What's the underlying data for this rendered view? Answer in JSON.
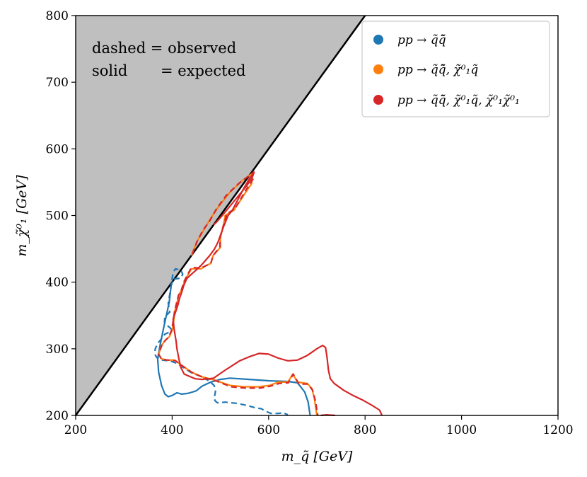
{
  "chart_data": {
    "type": "line",
    "xlabel": "m_q̃ [GeV]",
    "ylabel": "m_χ̃⁰₁ [GeV]",
    "xlim": [
      200,
      1200
    ],
    "ylim": [
      200,
      800
    ],
    "xticks": [
      "200",
      "400",
      "600",
      "800",
      "1000",
      "1200"
    ],
    "yticks": [
      "200",
      "300",
      "400",
      "500",
      "600",
      "700",
      "800"
    ],
    "xticks_values": [
      200,
      400,
      600,
      800,
      1000,
      1200
    ],
    "yticks_values": [
      200,
      300,
      400,
      500,
      600,
      700,
      800
    ],
    "annotation": {
      "line1": "dashed = observed",
      "line2_key": "solid",
      "line2_value": "= expected"
    },
    "excluded_region": {
      "description": "kinematically forbidden",
      "boundary": [
        [
          200,
          200
        ],
        [
          800,
          800
        ]
      ],
      "color": "#bfbfbf"
    },
    "legend": [
      {
        "label": "pp → q̃q̃̄",
        "color": "#1f77b4"
      },
      {
        "label": "pp → q̃q̃̄, χ̃⁰₁q̃",
        "color": "#ff7f0e"
      },
      {
        "label": "pp → q̃q̃̄, χ̃⁰₁q̃, χ̃⁰₁χ̃⁰₁",
        "color": "#d62728"
      }
    ],
    "series": [
      {
        "name": "blue expected",
        "color": "#1f77b4",
        "style": "solid",
        "points": [
          [
            401,
            401
          ],
          [
            398,
            395
          ],
          [
            394,
            370
          ],
          [
            388,
            350
          ],
          [
            382,
            330
          ],
          [
            375,
            305
          ],
          [
            370,
            285
          ],
          [
            372,
            265
          ],
          [
            378,
            245
          ],
          [
            385,
            232
          ],
          [
            392,
            228
          ],
          [
            400,
            230
          ],
          [
            410,
            234
          ],
          [
            420,
            232
          ],
          [
            432,
            233
          ],
          [
            442,
            235
          ],
          [
            450,
            237
          ],
          [
            462,
            244
          ],
          [
            480,
            250
          ],
          [
            500,
            254
          ],
          [
            520,
            256
          ],
          [
            560,
            254
          ],
          [
            600,
            252
          ],
          [
            640,
            251
          ],
          [
            660,
            249
          ],
          [
            675,
            235
          ],
          [
            682,
            220
          ],
          [
            686,
            200
          ]
        ]
      },
      {
        "name": "blue observed",
        "color": "#1f77b4",
        "style": "dashed",
        "points": [
          [
            404,
            404
          ],
          [
            407,
            405
          ],
          [
            418,
            406
          ],
          [
            422,
            412
          ],
          [
            418,
            418
          ],
          [
            407,
            420
          ],
          [
            402,
            415
          ],
          [
            398,
            395
          ],
          [
            392,
            368
          ],
          [
            395,
            355
          ],
          [
            385,
            348
          ],
          [
            384,
            340
          ],
          [
            390,
            335
          ],
          [
            398,
            330
          ],
          [
            394,
            325
          ],
          [
            385,
            322
          ],
          [
            378,
            315
          ],
          [
            370,
            308
          ],
          [
            365,
            300
          ],
          [
            364,
            292
          ],
          [
            368,
            287
          ],
          [
            378,
            283
          ],
          [
            395,
            282
          ],
          [
            410,
            278
          ],
          [
            425,
            271
          ],
          [
            440,
            264
          ],
          [
            462,
            258
          ],
          [
            478,
            251
          ],
          [
            487,
            245
          ],
          [
            490,
            238
          ],
          [
            489,
            232
          ],
          [
            487,
            227
          ],
          [
            489,
            222
          ],
          [
            494,
            219
          ],
          [
            510,
            220
          ],
          [
            535,
            218
          ],
          [
            555,
            215
          ],
          [
            570,
            212
          ],
          [
            585,
            210
          ],
          [
            595,
            206
          ],
          [
            605,
            203
          ],
          [
            620,
            203
          ],
          [
            630,
            204
          ],
          [
            640,
            201
          ]
        ]
      },
      {
        "name": "orange expected",
        "color": "#ff7f0e",
        "style": "solid",
        "points": [
          [
            440,
            440
          ],
          [
            452,
            462
          ],
          [
            467,
            480
          ],
          [
            480,
            496
          ],
          [
            495,
            512
          ],
          [
            520,
            535
          ],
          [
            545,
            552
          ],
          [
            566,
            563
          ],
          [
            565,
            548
          ],
          [
            550,
            532
          ],
          [
            528,
            508
          ],
          [
            510,
            500
          ],
          [
            505,
            480
          ],
          [
            500,
            468
          ],
          [
            500,
            452
          ],
          [
            485,
            440
          ],
          [
            480,
            428
          ],
          [
            471,
            425
          ],
          [
            460,
            420
          ],
          [
            440,
            420
          ],
          [
            432,
            410
          ],
          [
            425,
            400
          ],
          [
            421,
            390
          ],
          [
            413,
            380
          ],
          [
            410,
            368
          ],
          [
            405,
            355
          ],
          [
            404,
            345
          ],
          [
            400,
            328
          ],
          [
            394,
            318
          ],
          [
            385,
            312
          ],
          [
            378,
            305
          ],
          [
            372,
            292
          ],
          [
            378,
            285
          ],
          [
            390,
            283
          ],
          [
            405,
            283
          ],
          [
            420,
            275
          ],
          [
            440,
            265
          ],
          [
            462,
            258
          ],
          [
            488,
            253
          ],
          [
            520,
            245
          ],
          [
            550,
            243
          ],
          [
            580,
            243
          ],
          [
            602,
            245
          ],
          [
            620,
            250
          ],
          [
            640,
            250
          ],
          [
            650,
            262
          ],
          [
            660,
            250
          ],
          [
            680,
            248
          ],
          [
            690,
            240
          ],
          [
            695,
            225
          ],
          [
            700,
            200
          ]
        ]
      },
      {
        "name": "red observed",
        "color": "#d62728",
        "style": "dashed",
        "points": [
          [
            442,
            442
          ],
          [
            451,
            460
          ],
          [
            464,
            478
          ],
          [
            478,
            492
          ],
          [
            492,
            510
          ],
          [
            512,
            530
          ],
          [
            538,
            548
          ],
          [
            560,
            560
          ],
          [
            568,
            565
          ],
          [
            568,
            555
          ],
          [
            553,
            538
          ],
          [
            530,
            510
          ],
          [
            514,
            503
          ],
          [
            505,
            482
          ],
          [
            500,
            468
          ],
          [
            499,
            453
          ],
          [
            485,
            440
          ],
          [
            480,
            428
          ],
          [
            471,
            425
          ],
          [
            459,
            421
          ],
          [
            440,
            422
          ],
          [
            431,
            410
          ],
          [
            424,
            400
          ],
          [
            419,
            388
          ],
          [
            413,
            380
          ],
          [
            409,
            368
          ],
          [
            405,
            356
          ],
          [
            403,
            345
          ],
          [
            399,
            328
          ],
          [
            393,
            318
          ],
          [
            385,
            312
          ],
          [
            378,
            304
          ],
          [
            372,
            292
          ],
          [
            378,
            284
          ],
          [
            392,
            283
          ],
          [
            407,
            282
          ],
          [
            422,
            274
          ],
          [
            442,
            264
          ],
          [
            464,
            257
          ],
          [
            490,
            252
          ],
          [
            522,
            243
          ],
          [
            552,
            241
          ],
          [
            582,
            241
          ],
          [
            604,
            244
          ],
          [
            622,
            248
          ],
          [
            641,
            249
          ],
          [
            651,
            262
          ],
          [
            663,
            247
          ],
          [
            681,
            247
          ],
          [
            691,
            238
          ],
          [
            697,
            222
          ],
          [
            702,
            200
          ]
        ]
      },
      {
        "name": "red expected",
        "color": "#d62728",
        "style": "solid",
        "points": [
          [
            486,
            486
          ],
          [
            492,
            490
          ],
          [
            504,
            500
          ],
          [
            520,
            514
          ],
          [
            538,
            530
          ],
          [
            555,
            545
          ],
          [
            566,
            557
          ],
          [
            570,
            565
          ],
          [
            560,
            555
          ],
          [
            548,
            540
          ],
          [
            535,
            522
          ],
          [
            525,
            508
          ],
          [
            516,
            500
          ],
          [
            506,
            482
          ],
          [
            500,
            470
          ],
          [
            495,
            460
          ],
          [
            488,
            450
          ],
          [
            478,
            440
          ],
          [
            460,
            425
          ],
          [
            448,
            417
          ],
          [
            437,
            410
          ],
          [
            430,
            405
          ],
          [
            424,
            395
          ],
          [
            420,
            385
          ],
          [
            415,
            375
          ],
          [
            412,
            366
          ],
          [
            407,
            355
          ],
          [
            402,
            345
          ],
          [
            404,
            330
          ],
          [
            408,
            312
          ],
          [
            410,
            300
          ],
          [
            414,
            285
          ],
          [
            418,
            272
          ],
          [
            425,
            262
          ],
          [
            438,
            258
          ],
          [
            448,
            255
          ],
          [
            462,
            254
          ],
          [
            476,
            255
          ],
          [
            486,
            256
          ],
          [
            498,
            262
          ],
          [
            510,
            268
          ],
          [
            523,
            274
          ],
          [
            540,
            282
          ],
          [
            560,
            288
          ],
          [
            580,
            293
          ],
          [
            600,
            292
          ],
          [
            620,
            286
          ],
          [
            640,
            282
          ],
          [
            660,
            283
          ],
          [
            680,
            290
          ],
          [
            700,
            300
          ],
          [
            712,
            305
          ],
          [
            718,
            302
          ],
          [
            721,
            288
          ],
          [
            724,
            268
          ],
          [
            728,
            255
          ],
          [
            736,
            248
          ],
          [
            755,
            238
          ],
          [
            775,
            230
          ],
          [
            795,
            223
          ],
          [
            815,
            215
          ],
          [
            830,
            208
          ],
          [
            835,
            200
          ]
        ]
      },
      {
        "name": "red expected tail",
        "color": "#d62728",
        "style": "solid",
        "points": [
          [
            708,
            200
          ],
          [
            720,
            201
          ],
          [
            738,
            200
          ]
        ]
      }
    ]
  }
}
